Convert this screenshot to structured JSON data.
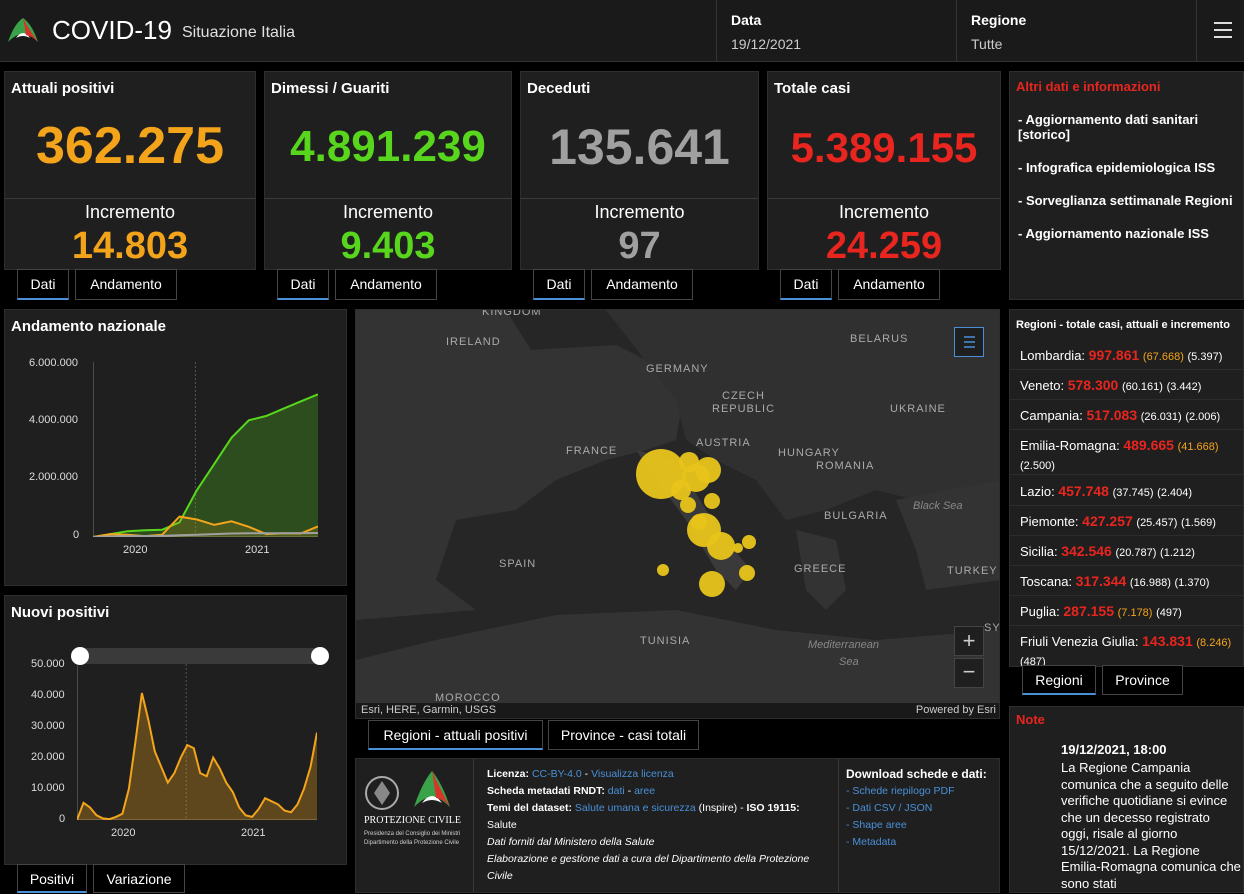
{
  "header": {
    "title": "COVID-19",
    "subtitle": "Situazione Italia",
    "date_label": "Data",
    "date_value": "19/12/2021",
    "region_label": "Regione",
    "region_value": "Tutte"
  },
  "cards": [
    {
      "title": "Attuali positivi",
      "value": "362.275",
      "inc_label": "Incremento",
      "inc_value": "14.803",
      "color": "#f3a41b"
    },
    {
      "title": "Dimessi / Guariti",
      "value": "4.891.239",
      "inc_label": "Incremento",
      "inc_value": "9.403",
      "color": "#58d61d"
    },
    {
      "title": "Deceduti",
      "value": "135.641",
      "inc_label": "Incremento",
      "inc_value": "97",
      "color": "#a0a0a0"
    },
    {
      "title": "Totale casi",
      "value": "5.389.155",
      "inc_label": "Incremento",
      "inc_value": "24.259",
      "color": "#e8251f"
    }
  ],
  "card_tabs": {
    "dati": "Dati",
    "andamento": "Andamento"
  },
  "altri": {
    "title": "Altri dati e informazioni",
    "links": [
      "- Aggiornamento dati sanitari [storico]",
      "- Infografica epidemiologica ISS",
      "- Sorveglianza settimanale Regioni",
      "- Aggiornamento nazionale ISS"
    ]
  },
  "andamento": {
    "title": "Andamento nazionale",
    "y_ticks": [
      "6.000.000",
      "4.000.000",
      "2.000.000",
      "0"
    ],
    "x_ticks": [
      "2020",
      "2021"
    ]
  },
  "nuovi": {
    "title": "Nuovi positivi",
    "y_ticks": [
      "50.000",
      "40.000",
      "30.000",
      "20.000",
      "10.000",
      "0"
    ],
    "x_ticks": [
      "2020",
      "2021"
    ],
    "tabs": {
      "positivi": "Positivi",
      "variazione": "Variazione"
    }
  },
  "map": {
    "countries": [
      "KINGDOM",
      "IRELAND",
      "GERMANY",
      "CZECH",
      "REPUBLIC",
      "BELARUS",
      "UKRAINE",
      "FRANCE",
      "AUSTRIA",
      "HUNGARY",
      "ROMANIA",
      "BULGARIA",
      "SPAIN",
      "GREECE",
      "TURKEY",
      "TUNISIA",
      "MOROCCO",
      "SYI"
    ],
    "seas": [
      "Black Sea",
      "Mediterranean",
      "Sea"
    ],
    "attribution": "Esri, HERE, Garmin, USGS",
    "powered": "Powered by Esri",
    "tabs": {
      "regioni": "Regioni - attuali positivi",
      "province": "Province - casi totali"
    }
  },
  "regions": {
    "title": "Regioni - totale casi, attuali e incremento",
    "items": [
      {
        "name": "Lombardia:",
        "total": "997.861",
        "attuali": "(67.668)",
        "inc": "(5.397)"
      },
      {
        "name": "Veneto:",
        "total": "578.300",
        "attuali": "(60.161)",
        "inc": "(3.442)"
      },
      {
        "name": "Campania:",
        "total": "517.083",
        "attuali": "(26.031)",
        "inc": "(2.006)"
      },
      {
        "name": "Emilia-Romagna:",
        "total": "489.665",
        "attuali": "(41.668)",
        "inc": "(2.500)"
      },
      {
        "name": "Lazio:",
        "total": "457.748",
        "attuali": "(37.745)",
        "inc": "(2.404)"
      },
      {
        "name": "Piemonte:",
        "total": "427.257",
        "attuali": "(25.457)",
        "inc": "(1.569)"
      },
      {
        "name": "Sicilia:",
        "total": "342.546",
        "attuali": "(20.787)",
        "inc": "(1.212)"
      },
      {
        "name": "Toscana:",
        "total": "317.344",
        "attuali": "(16.988)",
        "inc": "(1.370)"
      },
      {
        "name": "Puglia:",
        "total": "287.155",
        "attuali": "(7.178)",
        "inc": "(497)"
      },
      {
        "name": "Friuli Venezia Giulia:",
        "total": "143.831",
        "attuali": "(8.246)",
        "inc": "(487)"
      }
    ],
    "tabs": {
      "regioni": "Regioni",
      "province": "Province"
    }
  },
  "note": {
    "title": "Note",
    "heading": "19/12/2021, 18:00",
    "text": "La Regione Campania comunica che a seguito delle verifiche quotidiane si evince che un decesso registrato oggi, risale al giorno 15/12/2021. La Regione Emilia-Romagna comunica che sono stati"
  },
  "footer": {
    "pc_name": "PROTEZIONE CIVILE",
    "pc_sub1": "Presidenza del Consiglio dei Ministri",
    "pc_sub2": "Dipartimento della Protezione Civile",
    "licenza_label": "Licenza:",
    "licenza_link": "CC-BY-4.0",
    "licenza_sep": " - ",
    "licenza_view": "Visualizza licenza",
    "rndt_label": "Scheda metadati RNDT:",
    "rndt_dati": "dati",
    "rndt_sep": " - ",
    "rndt_aree": "aree",
    "temi_label": "Temi del dataset:",
    "temi_link": "Salute umana e sicurezza",
    "temi_rest": " (Inspire) - ",
    "iso": "ISO 19115:",
    "salute": "Salute",
    "line1": "Dati forniti dal Ministero della Salute",
    "line2": "Elaborazione e gestione dati a cura del Dipartimento della Protezione Civile",
    "download_title": "Download schede e dati:",
    "downloads": [
      "- Schede riepilogo PDF",
      "- Dati CSV / JSON",
      "- Shape aree",
      "- Metadata"
    ]
  },
  "chart_data": [
    {
      "type": "area",
      "title": "Andamento nazionale",
      "x_range": [
        "2020-02",
        "2021-12"
      ],
      "ylim": [
        0,
        6000000
      ],
      "series": [
        {
          "values_approx": [
            0,
            100000,
            200000,
            230000,
            250000,
            500000,
            1600000,
            2500000,
            3400000,
            4000000,
            4150000,
            4400000,
            4650000,
            4891239
          ],
          "color": "#58d61d"
        },
        {
          "values_approx": [
            0,
            100000,
            80000,
            30000,
            80000,
            700000,
            600000,
            420000,
            540000,
            350000,
            100000,
            130000,
            120000,
            362275
          ],
          "color": "#f3a41b"
        },
        {
          "values_approx": [
            0,
            20000,
            34000,
            35000,
            36000,
            60000,
            75000,
            100000,
            120000,
            127000,
            129000,
            131000,
            133000,
            135641
          ],
          "color": "#a0a0a0"
        }
      ]
    },
    {
      "type": "area",
      "title": "Nuovi positivi",
      "x_range": [
        "2020-02",
        "2021-12"
      ],
      "ylim": [
        0,
        50000
      ],
      "series": [
        {
          "values_approx": [
            0,
            5500,
            4000,
            1500,
            500,
            300,
            1000,
            2000,
            10000,
            25000,
            40700,
            32000,
            22000,
            17000,
            12000,
            15000,
            20000,
            24000,
            23000,
            15000,
            14000,
            20000,
            16500,
            12000,
            9000,
            4000,
            1500,
            1000,
            3500,
            7000,
            6000,
            5000,
            3000,
            2500,
            5000,
            10000,
            17000,
            28000
          ],
          "color": "#f3a41b"
        }
      ]
    }
  ]
}
